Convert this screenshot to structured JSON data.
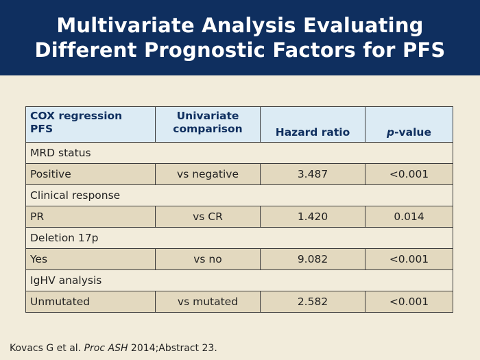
{
  "title": {
    "line1": "Multivariate Analysis Evaluating",
    "line2": "Different Prognostic Factors for PFS"
  },
  "table": {
    "headers": {
      "col1_line1": "COX regression",
      "col1_line2": "PFS",
      "col2_line1": "Univariate",
      "col2_line2": "comparison",
      "col3": "Hazard ratio",
      "col4_italic": "p",
      "col4_rest": "-value"
    },
    "groups": [
      {
        "section": "MRD status",
        "factor": "Positive",
        "comparison": "vs negative",
        "hazard_ratio": "3.487",
        "p_value": "<0.001"
      },
      {
        "section": "Clinical response",
        "factor": "PR",
        "comparison": "vs CR",
        "hazard_ratio": "1.420",
        "p_value": "0.014"
      },
      {
        "section": "Deletion 17p",
        "factor": "Yes",
        "comparison": "vs no",
        "hazard_ratio": "9.082",
        "p_value": "<0.001"
      },
      {
        "section": "IgHV analysis",
        "factor": "Unmutated",
        "comparison": "vs mutated",
        "hazard_ratio": "2.582",
        "p_value": "<0.001"
      }
    ]
  },
  "footer": {
    "prefix": "Kovacs G et al. ",
    "journal": "Proc ASH",
    "suffix": " 2014;Abstract 23."
  },
  "colors": {
    "title_bar": "#0f2f5f",
    "background": "#f2ecdb",
    "header_fill": "#dcebf4",
    "data_row_fill": "#e3d9bf"
  }
}
